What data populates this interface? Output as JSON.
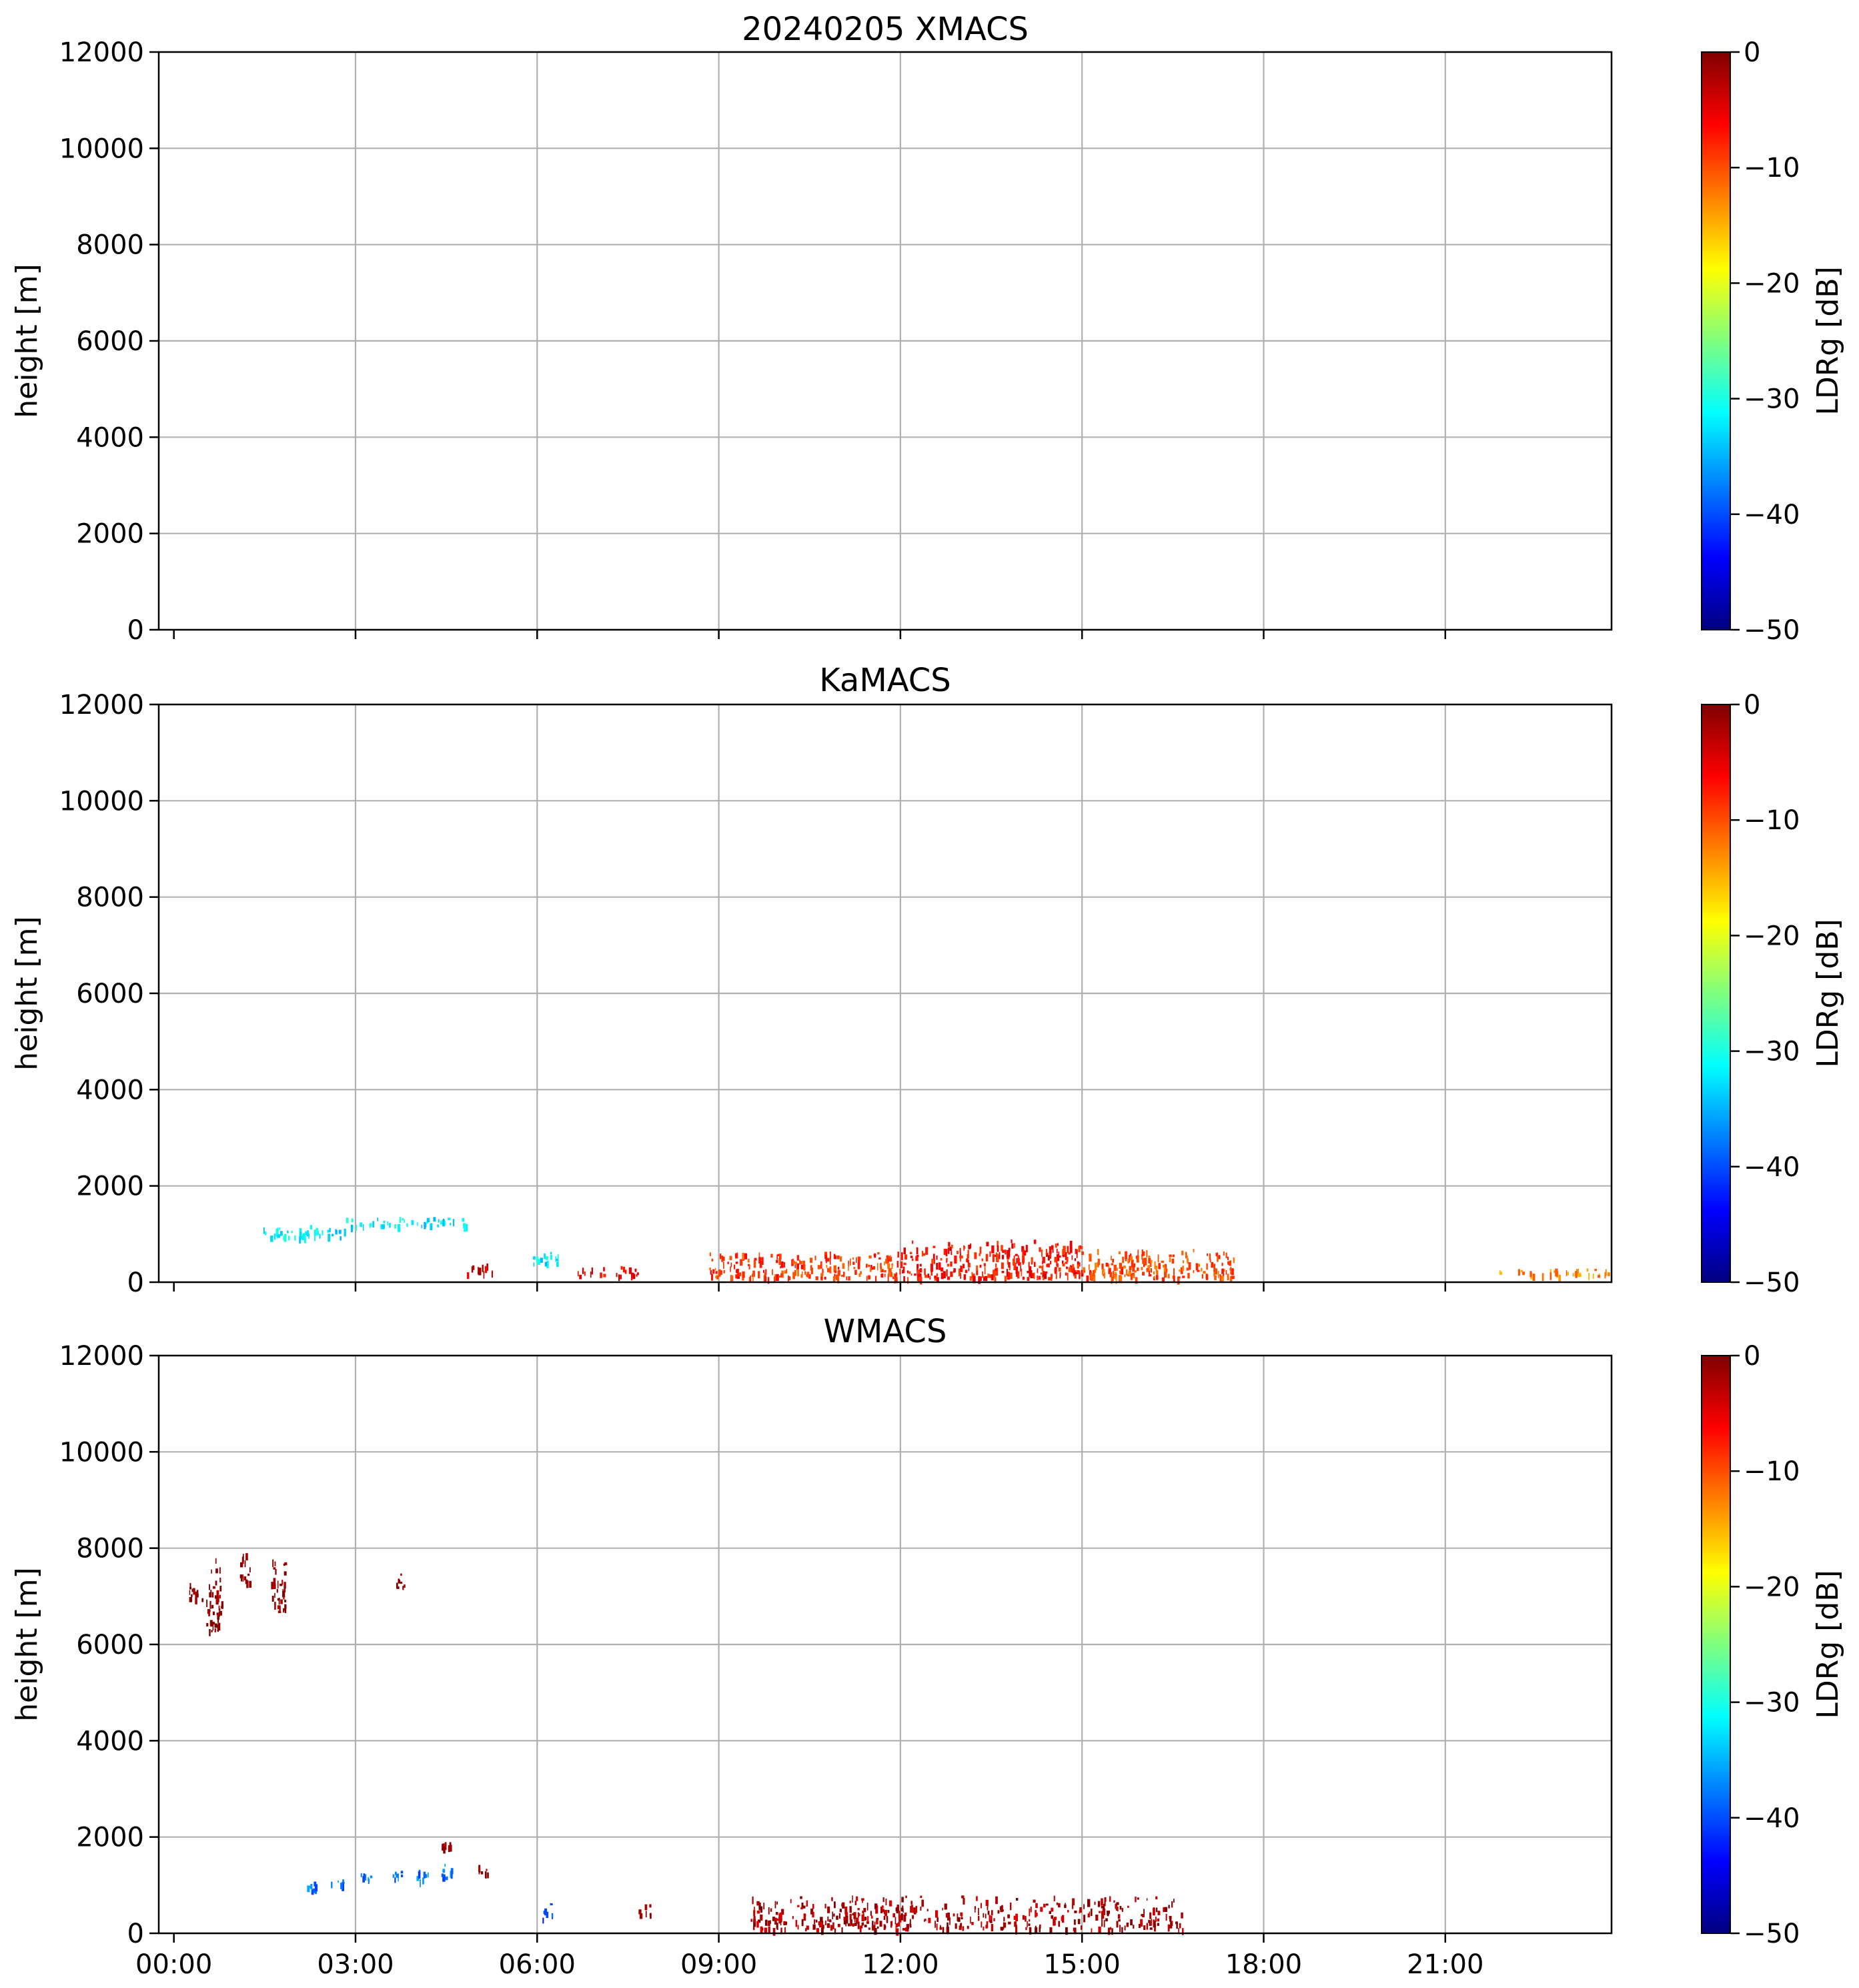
{
  "chart_data": [
    {
      "type": "heatmap",
      "title": "20240205 XMACS",
      "ylabel": "height [m]",
      "xlabel": "",
      "x_ticks": [
        "00:00",
        "03:00",
        "06:00",
        "09:00",
        "12:00",
        "15:00",
        "18:00",
        "21:00"
      ],
      "x_tick_labels_visible": false,
      "ylim": [
        0,
        12000
      ],
      "y_ticks": [
        0,
        2000,
        4000,
        6000,
        8000,
        10000,
        12000
      ],
      "grid": true,
      "colorbar": {
        "label": "LDRg [dB]",
        "colormap": "jet",
        "range": [
          -50,
          0
        ],
        "ticks": [
          0,
          -10,
          -20,
          -30,
          -40,
          -50
        ],
        "tick_labels": [
          "0",
          "−10",
          "−20",
          "−30",
          "−40",
          "−50"
        ]
      },
      "features": []
    },
    {
      "type": "heatmap",
      "title": "KaMACS",
      "ylabel": "height [m]",
      "xlabel": "",
      "x_ticks": [
        "00:00",
        "03:00",
        "06:00",
        "09:00",
        "12:00",
        "15:00",
        "18:00",
        "21:00"
      ],
      "x_tick_labels_visible": false,
      "ylim": [
        0,
        12000
      ],
      "y_ticks": [
        0,
        2000,
        4000,
        6000,
        8000,
        10000,
        12000
      ],
      "grid": true,
      "colorbar": {
        "label": "LDRg [dB]",
        "colormap": "jet",
        "range": [
          -50,
          0
        ],
        "ticks": [
          0,
          -10,
          -20,
          -30,
          -40,
          -50
        ],
        "tick_labels": [
          "0",
          "−10",
          "−20",
          "−30",
          "−40",
          "−50"
        ]
      },
      "features": [
        {
          "t_start": "01:20",
          "t_end": "02:50",
          "h_min": 950,
          "h_max": 1200,
          "ldr": -32
        },
        {
          "t_start": "02:50",
          "t_end": "04:50",
          "h_min": 1180,
          "h_max": 1380,
          "ldr": -32
        },
        {
          "t_start": "05:55",
          "t_end": "06:25",
          "h_min": 400,
          "h_max": 650,
          "ldr": -32
        },
        {
          "t_start": "04:50",
          "t_end": "05:15",
          "h_min": 200,
          "h_max": 450,
          "ldr": -4
        },
        {
          "t_start": "06:40",
          "t_end": "07:40",
          "h_min": 150,
          "h_max": 350,
          "ldr": -6
        },
        {
          "t_start": "08:50",
          "t_end": "12:00",
          "h_min": 100,
          "h_max": 650,
          "ldr": -9
        },
        {
          "t_start": "12:00",
          "t_end": "15:00",
          "h_min": 100,
          "h_max": 900,
          "ldr": -7
        },
        {
          "t_start": "15:00",
          "t_end": "17:30",
          "h_min": 100,
          "h_max": 700,
          "ldr": -10
        },
        {
          "t_start": "21:45",
          "t_end": "23:45",
          "h_min": 150,
          "h_max": 300,
          "ldr": -13
        }
      ]
    },
    {
      "type": "heatmap",
      "title": "WMACS",
      "ylabel": "height [m]",
      "xlabel": "",
      "x_ticks": [
        "00:00",
        "03:00",
        "06:00",
        "09:00",
        "12:00",
        "15:00",
        "18:00",
        "21:00"
      ],
      "x_tick_labels_visible": true,
      "ylim": [
        0,
        12000
      ],
      "y_ticks": [
        0,
        2000,
        4000,
        6000,
        8000,
        10000,
        12000
      ],
      "grid": true,
      "colorbar": {
        "label": "LDRg [dB]",
        "colormap": "jet",
        "range": [
          -50,
          0
        ],
        "ticks": [
          0,
          -10,
          -20,
          -30,
          -40,
          -50
        ],
        "tick_labels": [
          "0",
          "−10",
          "−20",
          "−30",
          "−40",
          "−50"
        ]
      },
      "features": [
        {
          "t_start": "00:15",
          "t_end": "00:30",
          "h_min": 6900,
          "h_max": 7300,
          "ldr": 0
        },
        {
          "t_start": "00:32",
          "t_end": "00:47",
          "h_min": 6250,
          "h_max": 7900,
          "ldr": 0
        },
        {
          "t_start": "01:05",
          "t_end": "01:15",
          "h_min": 7300,
          "h_max": 8000,
          "ldr": 0
        },
        {
          "t_start": "01:35",
          "t_end": "01:50",
          "h_min": 6700,
          "h_max": 7800,
          "ldr": 0
        },
        {
          "t_start": "03:40",
          "t_end": "03:48",
          "h_min": 7200,
          "h_max": 7600,
          "ldr": 0
        },
        {
          "t_start": "02:10",
          "t_end": "02:20",
          "h_min": 900,
          "h_max": 1150,
          "ldr": -38
        },
        {
          "t_start": "02:35",
          "t_end": "02:47",
          "h_min": 1000,
          "h_max": 1200,
          "ldr": -38
        },
        {
          "t_start": "03:03",
          "t_end": "03:15",
          "h_min": 1050,
          "h_max": 1350,
          "ldr": -38
        },
        {
          "t_start": "03:33",
          "t_end": "03:45",
          "h_min": 1150,
          "h_max": 1400,
          "ldr": -38
        },
        {
          "t_start": "04:00",
          "t_end": "04:12",
          "h_min": 1100,
          "h_max": 1350,
          "ldr": -38
        },
        {
          "t_start": "04:25",
          "t_end": "04:37",
          "h_min": 1150,
          "h_max": 1450,
          "ldr": -38
        },
        {
          "t_start": "04:25",
          "t_end": "04:37",
          "h_min": 1800,
          "h_max": 1950,
          "ldr": 0
        },
        {
          "t_start": "05:00",
          "t_end": "05:12",
          "h_min": 1250,
          "h_max": 1450,
          "ldr": 0
        },
        {
          "t_start": "06:05",
          "t_end": "06:15",
          "h_min": 300,
          "h_max": 650,
          "ldr": -40
        },
        {
          "t_start": "07:40",
          "t_end": "07:53",
          "h_min": 400,
          "h_max": 700,
          "ldr": 0
        },
        {
          "t_start": "09:30",
          "t_end": "16:40",
          "h_min": 100,
          "h_max": 800,
          "ldr": -2
        }
      ]
    }
  ]
}
